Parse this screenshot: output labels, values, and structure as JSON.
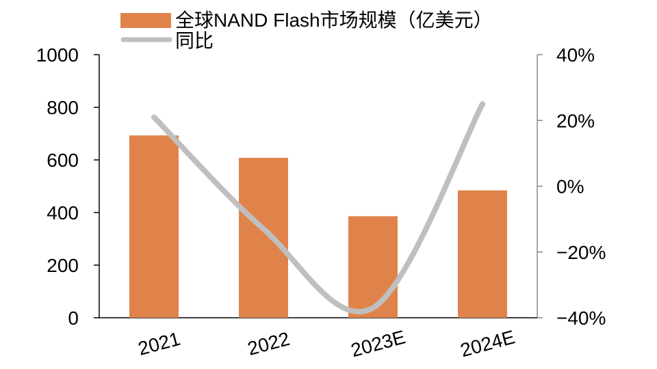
{
  "chart_data": {
    "type": "bar",
    "categories": [
      "2021",
      "2022",
      "2023E",
      "2024E"
    ],
    "series": [
      {
        "name": "全球NAND Flash市场规模（亿美元）",
        "type": "bar",
        "axis": "left",
        "values": [
          693,
          608,
          386,
          484
        ],
        "color": "#E0834A"
      },
      {
        "name": "同比",
        "type": "line",
        "axis": "right",
        "values": [
          21,
          -13,
          -37,
          25
        ],
        "color": "#BFBFBF"
      }
    ],
    "y_left": {
      "range": [
        0,
        1000
      ],
      "ticks": [
        "0",
        "200",
        "400",
        "600",
        "800",
        "1000"
      ]
    },
    "y_right": {
      "range": [
        -40,
        40
      ],
      "ticks": [
        "−40%",
        "−20%",
        "0%",
        "20%",
        "40%"
      ]
    },
    "legend": "top-left",
    "grid": false
  }
}
